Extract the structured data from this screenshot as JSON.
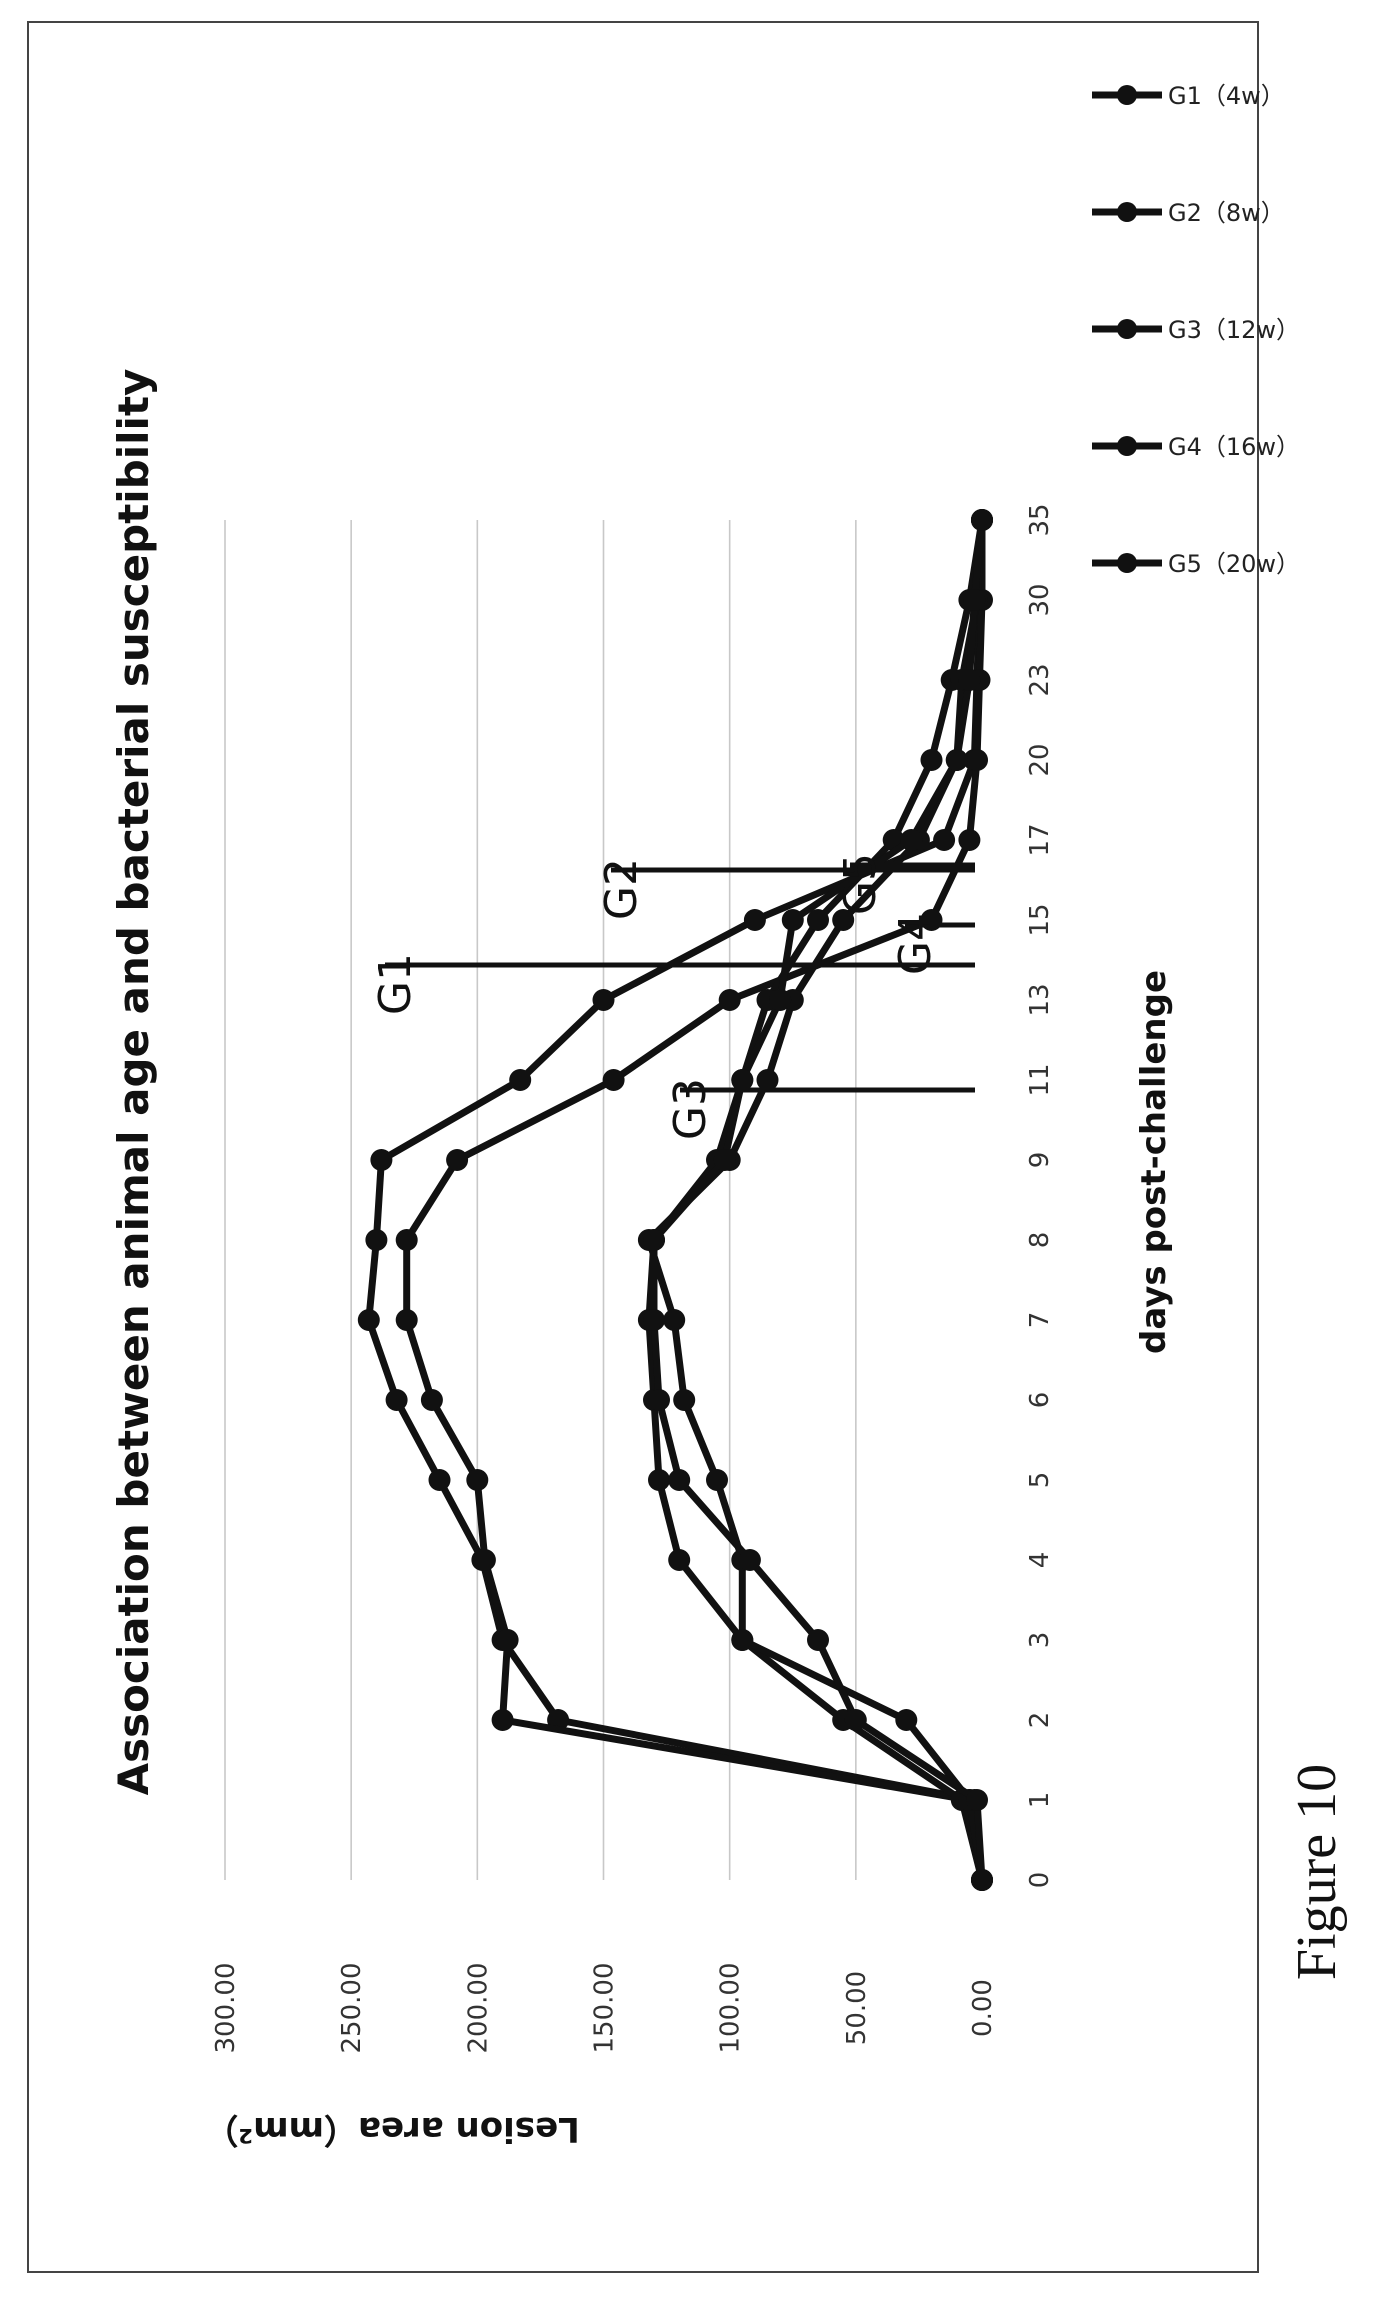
{
  "figure_caption": "Figure 10",
  "chart_data": {
    "type": "line",
    "title": "Association between animal age and bacterial susceptibility",
    "xlabel": "days post-challenge",
    "ylabel": "Lesion area（mm²）",
    "categories": [
      "0",
      "1",
      "2",
      "3",
      "4",
      "5",
      "6",
      "7",
      "8",
      "9",
      "11",
      "13",
      "15",
      "17",
      "20",
      "23",
      "30",
      "35"
    ],
    "y_ticks": [
      "0.00",
      "50.00",
      "100.00",
      "150.00",
      "200.00",
      "250.00",
      "300.00"
    ],
    "ylim": [
      0,
      300
    ],
    "grid": true,
    "legend_placement": "right",
    "series": [
      {
        "name": "G1（4w）",
        "label": "G1",
        "values": [
          0,
          3,
          168,
          190,
          198,
          215,
          232,
          243,
          240,
          238,
          183,
          150,
          90,
          15,
          3,
          2,
          1,
          0
        ]
      },
      {
        "name": "G2（8w）",
        "label": "G2",
        "values": [
          0,
          5,
          190,
          188,
          197,
          200,
          218,
          228,
          228,
          208,
          146,
          100,
          20,
          5,
          2,
          1,
          0,
          0
        ]
      },
      {
        "name": "G3（12w）",
        "label": "G3",
        "values": [
          0,
          8,
          55,
          95,
          120,
          128,
          130,
          132,
          130,
          105,
          95,
          85,
          65,
          35,
          20,
          12,
          5,
          0
        ]
      },
      {
        "name": "G4（16w）",
        "label": "G4",
        "values": [
          0,
          5,
          30,
          95,
          95,
          105,
          118,
          122,
          132,
          100,
          85,
          75,
          55,
          25,
          10,
          8,
          2,
          0
        ]
      },
      {
        "name": "G5（20w）",
        "label": "G5",
        "values": [
          0,
          2,
          50,
          65,
          92,
          120,
          128,
          130,
          130,
          102,
          95,
          80,
          75,
          28,
          10,
          5,
          3,
          0
        ]
      }
    ]
  }
}
